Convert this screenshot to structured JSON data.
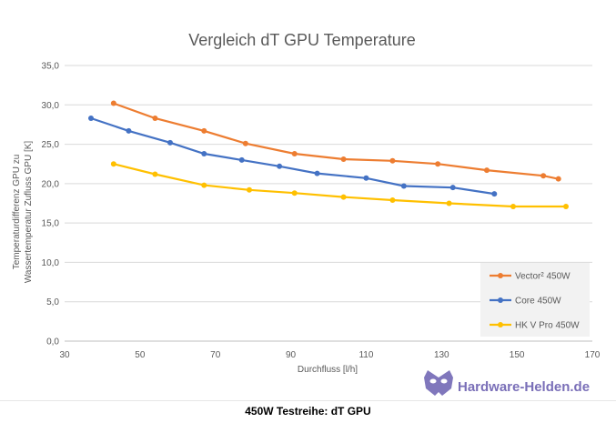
{
  "chart_data": {
    "type": "line",
    "title": "Vergleich dT GPU Temperature",
    "xlabel": "Durchfluss [l/h]",
    "ylabel_line1": "Temperaturdifferenz GPU zu",
    "ylabel_line2": "Wassertemperatur Zufluss GPU  [K]",
    "xlim": [
      30,
      170
    ],
    "ylim": [
      0,
      35
    ],
    "x_ticks": [
      "30",
      "50",
      "70",
      "90",
      "110",
      "130",
      "150",
      "170"
    ],
    "y_ticks": [
      "0,0",
      "5,0",
      "10,0",
      "15,0",
      "20,0",
      "25,0",
      "30,0",
      "35,0"
    ],
    "grid": true,
    "legend_position": "bottom-right",
    "series": [
      {
        "name": "Vector² 450W",
        "color": "#ed7d31",
        "points": [
          [
            43,
            30.2
          ],
          [
            54,
            28.3
          ],
          [
            67,
            26.7
          ],
          [
            78,
            25.1
          ],
          [
            91,
            23.8
          ],
          [
            104,
            23.1
          ],
          [
            117,
            22.9
          ],
          [
            129,
            22.5
          ],
          [
            142,
            21.7
          ],
          [
            157,
            21.0
          ],
          [
            161,
            20.6
          ]
        ]
      },
      {
        "name": "Core 450W",
        "color": "#4472c4",
        "points": [
          [
            37,
            28.3
          ],
          [
            47,
            26.7
          ],
          [
            58,
            25.2
          ],
          [
            67,
            23.8
          ],
          [
            77,
            23.0
          ],
          [
            87,
            22.2
          ],
          [
            97,
            21.3
          ],
          [
            110,
            20.7
          ],
          [
            120,
            19.7
          ],
          [
            133,
            19.5
          ],
          [
            144,
            18.7
          ]
        ]
      },
      {
        "name": "HK V Pro 450W",
        "color": "#ffc000",
        "points": [
          [
            43,
            22.5
          ],
          [
            54,
            21.2
          ],
          [
            67,
            19.8
          ],
          [
            79,
            19.2
          ],
          [
            91,
            18.8
          ],
          [
            104,
            18.3
          ],
          [
            117,
            17.9
          ],
          [
            132,
            17.5
          ],
          [
            149,
            17.1
          ],
          [
            163,
            17.1
          ]
        ]
      }
    ]
  },
  "watermark": {
    "text": "Hardware-Helden.de",
    "icon": "mask-logo-icon"
  },
  "caption": "450W Testreihe: dT GPU"
}
